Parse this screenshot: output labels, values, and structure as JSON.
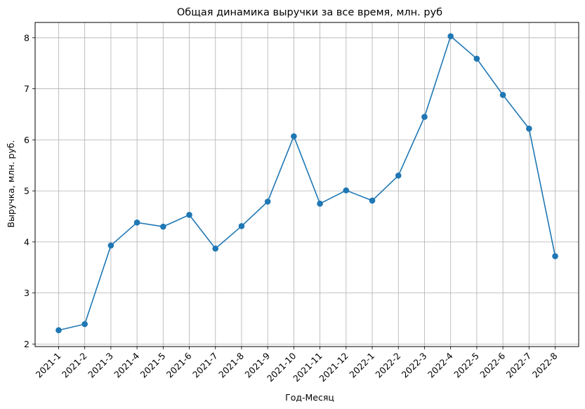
{
  "chart_data": {
    "type": "line",
    "title": "Общая динамика выручки за все время, млн. руб",
    "xlabel": "Год-Месяц",
    "ylabel": "Выручка, млн. руб.",
    "categories": [
      "2021-1",
      "2021-2",
      "2021-3",
      "2021-4",
      "2021-5",
      "2021-6",
      "2021-7",
      "2021-8",
      "2021-9",
      "2021-10",
      "2021-11",
      "2021-12",
      "2022-1",
      "2022-2",
      "2022-3",
      "2022-4",
      "2022-5",
      "2022-6",
      "2022-7",
      "2022-8"
    ],
    "series": [
      {
        "values": [
          2.27,
          2.39,
          3.93,
          4.38,
          4.3,
          4.53,
          3.87,
          4.31,
          4.79,
          6.07,
          4.75,
          5.01,
          4.81,
          5.3,
          6.45,
          8.03,
          7.59,
          6.88,
          6.22,
          3.72
        ],
        "color": "#1f77b4",
        "marker": "circle"
      }
    ],
    "ylim": [
      1.95,
      8.3
    ],
    "yticks": [
      2,
      3,
      4,
      5,
      6,
      7,
      8
    ],
    "grid": true,
    "legend": "none"
  }
}
